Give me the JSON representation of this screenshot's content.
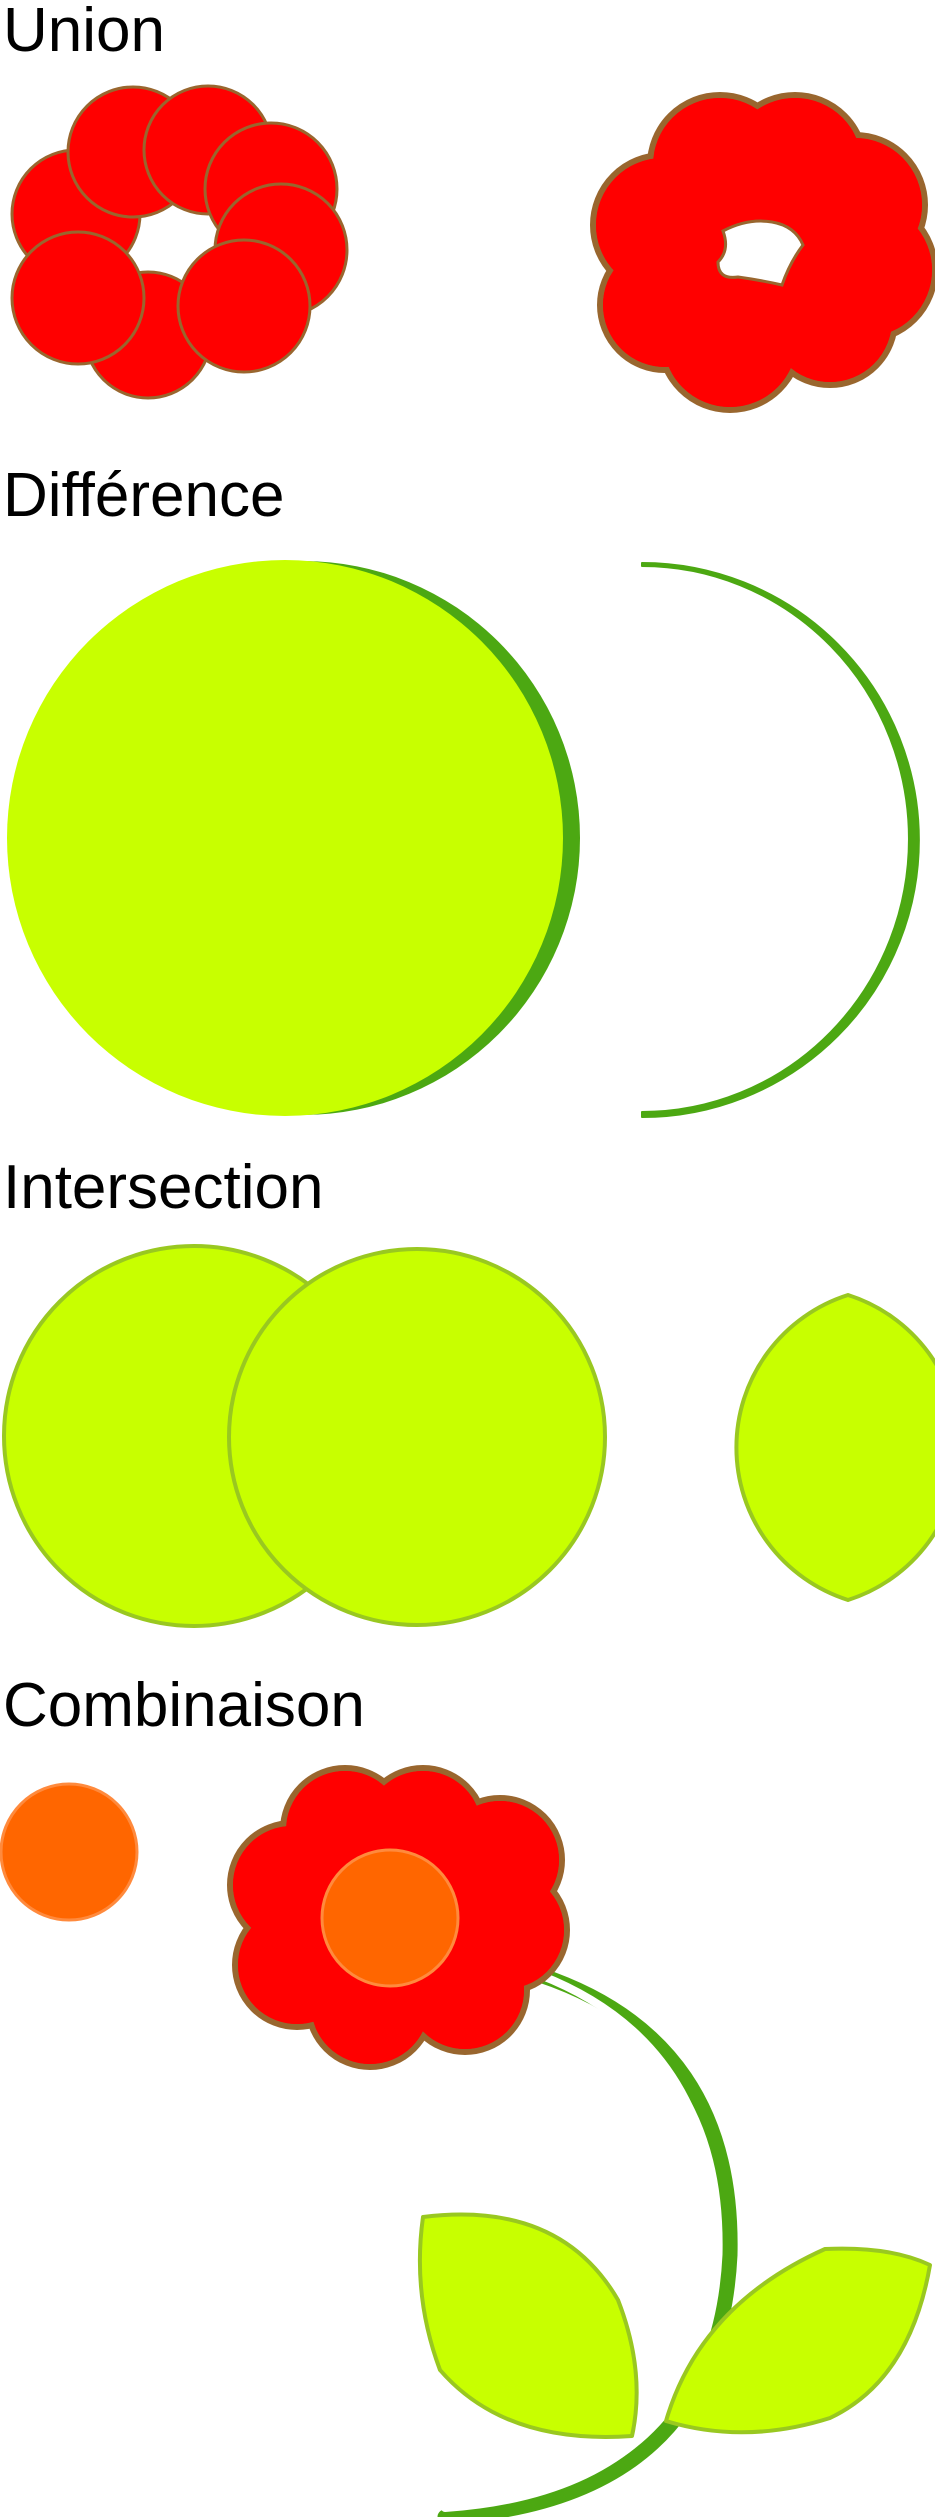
{
  "sections": {
    "union": {
      "title": "Union"
    },
    "difference": {
      "title": "Différence"
    },
    "intersection": {
      "title": "Intersection"
    },
    "combination": {
      "title": "Combinaison"
    }
  },
  "colors": {
    "petal_red": "#ff0000",
    "petal_stroke": "#99662e",
    "lime_fill": "#c8ff00",
    "lime_stroke": "#99c820",
    "stem_green": "#4ca812",
    "orange_fill": "#ff6600",
    "orange_stroke": "#ff8a3d"
  }
}
